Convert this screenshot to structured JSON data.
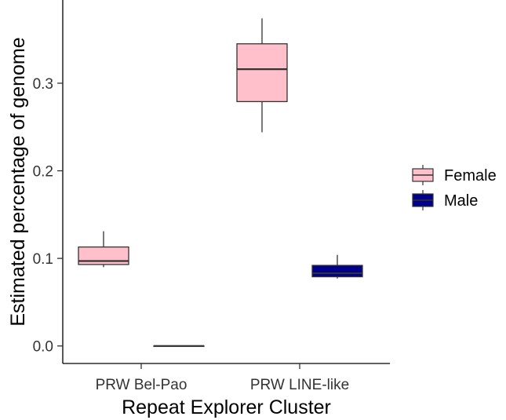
{
  "chart_data": {
    "type": "boxplot",
    "xlabel": "Repeat Explorer Cluster",
    "ylabel": "Estimated percentage of genome",
    "categories": [
      "PRW Bel-Pao",
      "PRW LINE-like"
    ],
    "y_ticks": [
      "0.0",
      "0.1",
      "0.2",
      "0.3"
    ],
    "y_tick_values": [
      0.0,
      0.1,
      0.2,
      0.3
    ],
    "ylim": [
      -0.02,
      0.395
    ],
    "grid": false,
    "legend_position": "right",
    "series": [
      {
        "name": "Female",
        "color": "#FFC0CB",
        "boxes": [
          {
            "category": "PRW Bel-Pao",
            "min": 0.09,
            "q1": 0.093,
            "median": 0.097,
            "q3": 0.113,
            "max": 0.131
          },
          {
            "category": "PRW LINE-like",
            "min": 0.244,
            "q1": 0.279,
            "median": 0.316,
            "q3": 0.345,
            "max": 0.374
          }
        ]
      },
      {
        "name": "Male",
        "color": "#00008B",
        "boxes": [
          {
            "category": "PRW Bel-Pao",
            "min": 0.0,
            "q1": 0.0,
            "median": 0.0,
            "q3": 0.0,
            "max": 0.0
          },
          {
            "category": "PRW LINE-like",
            "min": 0.077,
            "q1": 0.079,
            "median": 0.083,
            "q3": 0.092,
            "max": 0.104
          }
        ]
      }
    ]
  }
}
